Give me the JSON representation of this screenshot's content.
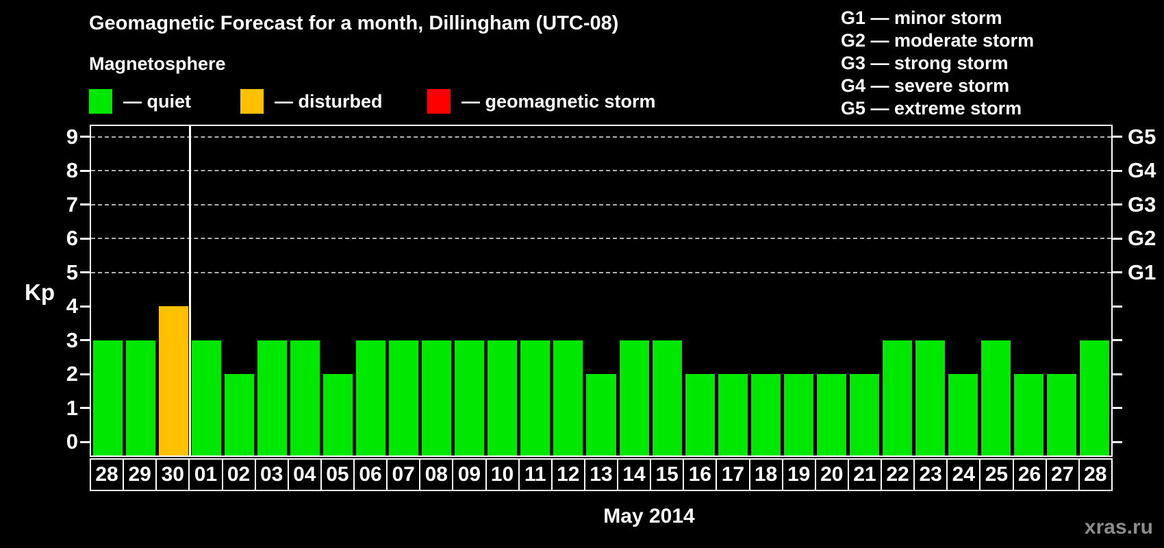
{
  "header": {
    "title": "Geomagnetic Forecast for a month, Dillingham (UTC-08)",
    "subtitle": "Magnetosphere"
  },
  "magnetosphere_legend": [
    {
      "label": "— quiet",
      "color": "#00e800",
      "status": "quiet"
    },
    {
      "label": "— disturbed",
      "color": "#ffc000",
      "status": "disturbed"
    },
    {
      "label": "— geomagnetic storm",
      "color": "#ff0000",
      "status": "storm"
    }
  ],
  "storm_scale_legend": [
    "G1 — minor storm",
    "G2 — moderate storm",
    "G3 — strong storm",
    "G4 — severe storm",
    "G5 — extreme storm"
  ],
  "chart_data": {
    "type": "bar",
    "title": "Geomagnetic Forecast for a month, Dillingham (UTC-08)",
    "ylabel": "Kp",
    "xlabel": "May 2014",
    "ylim": [
      0,
      9
    ],
    "yticks": [
      0,
      1,
      2,
      3,
      4,
      5,
      6,
      7,
      8,
      9
    ],
    "gridlines_at_kp": [
      5,
      6,
      7,
      8,
      9
    ],
    "right_axis_labels": [
      {
        "kp": 5,
        "label": "G1"
      },
      {
        "kp": 6,
        "label": "G2"
      },
      {
        "kp": 7,
        "label": "G3"
      },
      {
        "kp": 8,
        "label": "G4"
      },
      {
        "kp": 9,
        "label": "G5"
      }
    ],
    "categories": [
      "28",
      "29",
      "30",
      "01",
      "02",
      "03",
      "04",
      "05",
      "06",
      "07",
      "08",
      "09",
      "10",
      "11",
      "12",
      "13",
      "14",
      "15",
      "16",
      "17",
      "18",
      "19",
      "20",
      "21",
      "22",
      "23",
      "24",
      "25",
      "26",
      "27",
      "28"
    ],
    "values": [
      3,
      3,
      4,
      3,
      2,
      3,
      3,
      2,
      3,
      3,
      3,
      3,
      3,
      3,
      3,
      2,
      3,
      3,
      2,
      2,
      2,
      2,
      2,
      2,
      3,
      3,
      2,
      3,
      2,
      2,
      3
    ],
    "statuses": [
      "quiet",
      "quiet",
      "disturbed",
      "quiet",
      "quiet",
      "quiet",
      "quiet",
      "quiet",
      "quiet",
      "quiet",
      "quiet",
      "quiet",
      "quiet",
      "quiet",
      "quiet",
      "quiet",
      "quiet",
      "quiet",
      "quiet",
      "quiet",
      "quiet",
      "quiet",
      "quiet",
      "quiet",
      "quiet",
      "quiet",
      "quiet",
      "quiet",
      "quiet",
      "quiet",
      "quiet"
    ],
    "status_colors": {
      "quiet": "#00e800",
      "disturbed": "#ffc000",
      "storm": "#ff0000"
    },
    "month_separator_after_index": 2,
    "legend_position": "top",
    "grid": "horizontal dashed at Kp 5-9"
  },
  "footer": {
    "month_label": "May 2014",
    "watermark": "xras.ru"
  }
}
